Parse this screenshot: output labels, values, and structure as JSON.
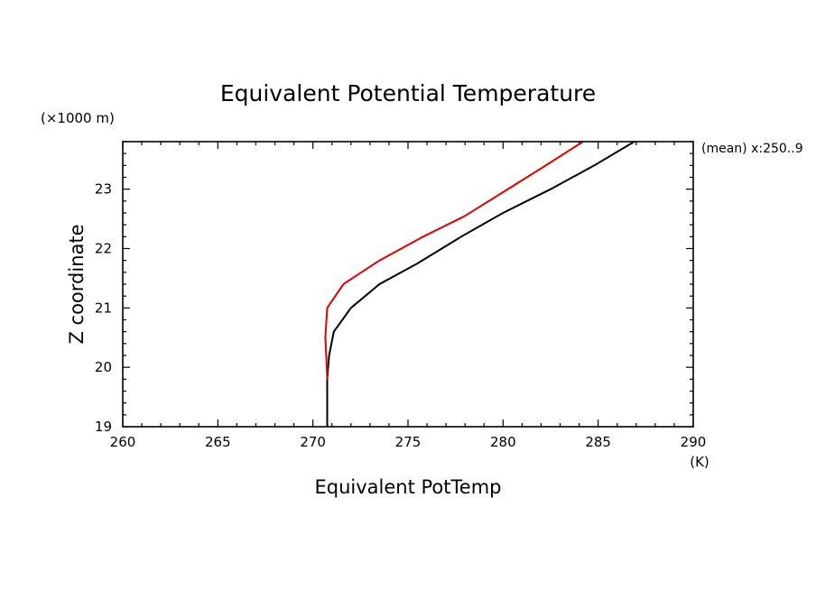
{
  "chart_data": {
    "type": "line",
    "title": "Equivalent Potential Temperature",
    "xlabel": "Equivalent PotTemp",
    "ylabel": "Z coordinate",
    "x_unit": "(K)",
    "y_unit": "(×1000 m)",
    "annotation": "(mean) x:250..9",
    "xlim": [
      260,
      290
    ],
    "ylim": [
      19,
      23.8
    ],
    "xticks": [
      260,
      265,
      270,
      275,
      280,
      285,
      290
    ],
    "yticks": [
      19,
      20,
      21,
      22,
      23
    ],
    "grid": false,
    "series": [
      {
        "color": "#000000",
        "points": [
          [
            270.75,
            19.0
          ],
          [
            270.75,
            19.8
          ],
          [
            270.85,
            20.2
          ],
          [
            271.1,
            20.6
          ],
          [
            272.0,
            21.0
          ],
          [
            273.5,
            21.4
          ],
          [
            275.5,
            21.75
          ],
          [
            277.8,
            22.2
          ],
          [
            280.0,
            22.6
          ],
          [
            282.5,
            23.0
          ],
          [
            284.8,
            23.4
          ],
          [
            286.9,
            23.8
          ]
        ]
      },
      {
        "color": "#e00000",
        "points": [
          [
            270.75,
            19.8
          ],
          [
            270.7,
            20.2
          ],
          [
            270.65,
            20.5
          ],
          [
            270.75,
            21.0
          ],
          [
            271.6,
            21.4
          ],
          [
            273.5,
            21.8
          ],
          [
            275.8,
            22.2
          ],
          [
            278.0,
            22.55
          ],
          [
            280.0,
            22.95
          ],
          [
            282.0,
            23.35
          ],
          [
            284.2,
            23.8
          ]
        ]
      }
    ]
  }
}
